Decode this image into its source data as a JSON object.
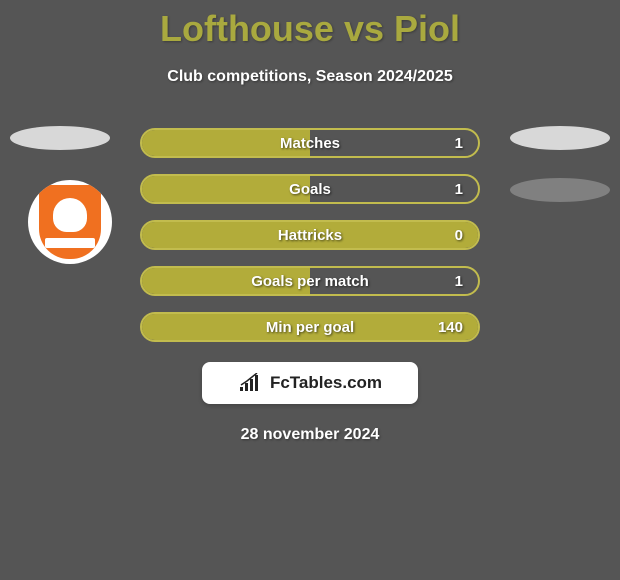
{
  "title": "Lofthouse vs Piol",
  "subtitle": "Club competitions, Season 2024/2025",
  "date": "28 november 2024",
  "colors": {
    "background": "#555555",
    "accent": "#a9a93f",
    "stat_fill": "#b2ac3a",
    "stat_border": "#c2bc4e",
    "text": "#ffffff",
    "badge_primary": "#f07020",
    "brand_box": "#ffffff",
    "brand_text": "#222222"
  },
  "stats": [
    {
      "label": "Matches",
      "value": "1",
      "fill_pct": 50
    },
    {
      "label": "Goals",
      "value": "1",
      "fill_pct": 50
    },
    {
      "label": "Hattricks",
      "value": "0",
      "fill_pct": 100
    },
    {
      "label": "Goals per match",
      "value": "1",
      "fill_pct": 50
    },
    {
      "label": "Min per goal",
      "value": "140",
      "fill_pct": 100
    }
  ],
  "brand": {
    "text": "FcTables.com"
  }
}
